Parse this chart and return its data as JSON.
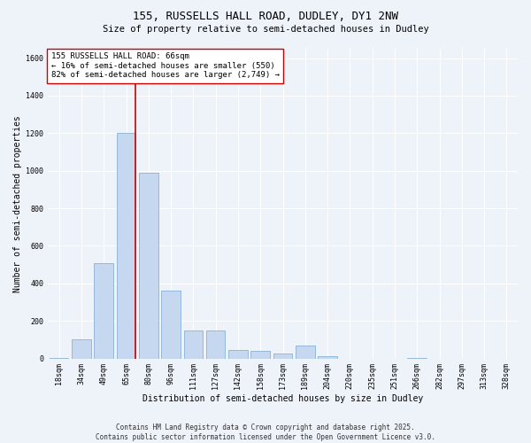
{
  "title_line1": "155, RUSSELLS HALL ROAD, DUDLEY, DY1 2NW",
  "title_line2": "Size of property relative to semi-detached houses in Dudley",
  "xlabel": "Distribution of semi-detached houses by size in Dudley",
  "ylabel": "Number of semi-detached properties",
  "categories": [
    "18sqm",
    "34sqm",
    "49sqm",
    "65sqm",
    "80sqm",
    "96sqm",
    "111sqm",
    "127sqm",
    "142sqm",
    "158sqm",
    "173sqm",
    "189sqm",
    "204sqm",
    "220sqm",
    "235sqm",
    "251sqm",
    "266sqm",
    "282sqm",
    "297sqm",
    "313sqm",
    "328sqm"
  ],
  "values": [
    5,
    100,
    510,
    1200,
    990,
    360,
    150,
    150,
    45,
    40,
    25,
    70,
    12,
    0,
    0,
    0,
    3,
    0,
    0,
    0,
    0
  ],
  "bar_color": "#c5d8ef",
  "bar_edge_color": "#7ba7d0",
  "vline_index": 3,
  "vline_color": "#cc0000",
  "annotation_text": "155 RUSSELLS HALL ROAD: 66sqm\n← 16% of semi-detached houses are smaller (550)\n82% of semi-detached houses are larger (2,749) →",
  "annotation_box_color": "#ffffff",
  "annotation_box_edge_color": "#cc0000",
  "ylim": [
    0,
    1650
  ],
  "yticks": [
    0,
    200,
    400,
    600,
    800,
    1000,
    1200,
    1400,
    1600
  ],
  "background_color": "#eef2f9",
  "plot_bg_color": "#eef2f9",
  "footer_text": "Contains HM Land Registry data © Crown copyright and database right 2025.\nContains public sector information licensed under the Open Government Licence v3.0.",
  "title_fontsize": 9,
  "subtitle_fontsize": 7.5,
  "axis_label_fontsize": 7,
  "tick_fontsize": 6,
  "annotation_fontsize": 6.5,
  "footer_fontsize": 5.5
}
